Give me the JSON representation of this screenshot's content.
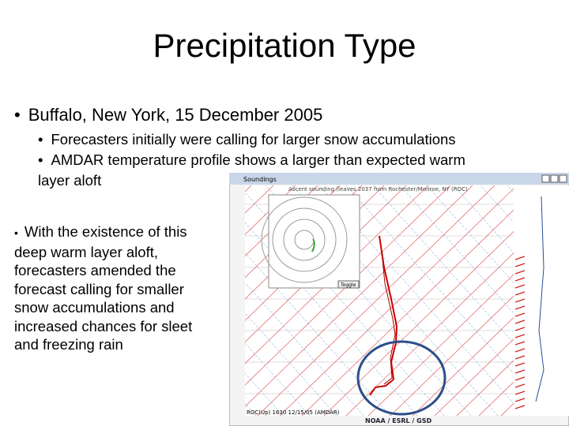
{
  "title": "Precipitation Type",
  "bullets": [
    {
      "text": "Buffalo, New York, 15 December 2005",
      "sub": [
        "Forecasters initially were calling for larger snow accumulations",
        "AMDAR temperature profile shows a larger than expected warm layer aloft"
      ]
    }
  ],
  "side_text": "With the existence of this deep warm layer aloft, forecasters amended the forecast calling for smaller snow accumulations and increased chances for sleet and freezing rain",
  "screenshot": {
    "window_title": "Soundings",
    "header": "Ascent sounding (leaves 2037 from Rochester/Monroe, NY (ROC)",
    "hodograph_label": "Toggle",
    "caption": "ROC(Up) 1630 12/15/05 (AMDAR)",
    "footer": "NOAA / ESRL / GSD"
  }
}
